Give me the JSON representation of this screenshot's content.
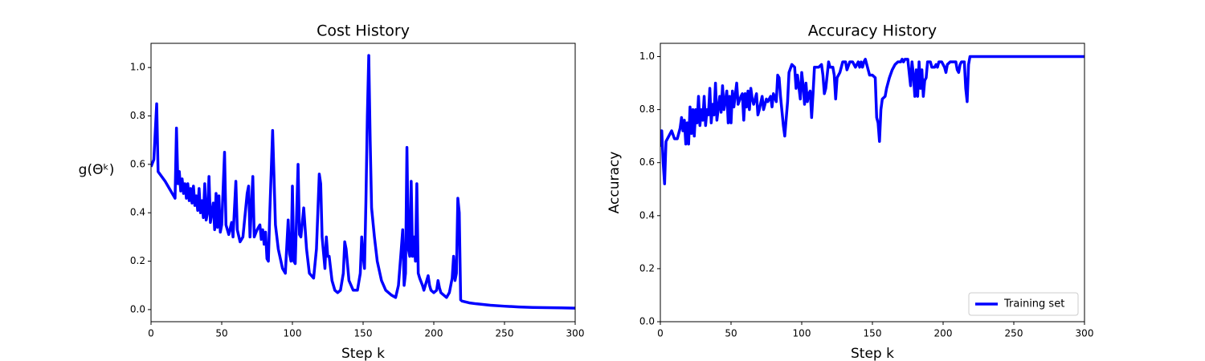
{
  "chart_data": [
    {
      "type": "line",
      "title": "Cost History",
      "xlabel": "Step k",
      "ylabel": "g(Θᵏ)",
      "color": "#0000ff",
      "xlim": [
        0,
        300
      ],
      "ylim": [
        -0.05,
        1.1
      ],
      "xticks": [
        0,
        50,
        100,
        150,
        200,
        250,
        300
      ],
      "yticks": [
        {
          "value": 0,
          "label": "0.0"
        },
        0.2,
        0.4,
        0.6,
        0.8,
        {
          "value": 1,
          "label": "1.0"
        }
      ],
      "x": [
        0,
        2,
        4,
        5,
        10,
        15,
        17,
        18,
        19,
        20,
        21,
        22,
        23,
        24,
        25,
        26,
        27,
        28,
        29,
        30,
        31,
        32,
        33,
        34,
        35,
        36,
        37,
        38,
        39,
        40,
        41,
        42,
        44,
        45,
        46,
        47,
        48,
        49,
        50,
        52,
        53,
        55,
        57,
        58,
        60,
        61,
        63,
        65,
        68,
        69,
        70,
        72,
        73,
        75,
        77,
        78,
        79,
        80,
        81,
        82,
        83,
        84,
        86,
        88,
        90,
        93,
        95,
        97,
        98,
        99,
        100,
        101,
        102,
        104,
        105,
        106,
        108,
        110,
        112,
        115,
        117,
        119,
        120,
        121,
        123,
        124,
        125,
        126,
        128,
        130,
        132,
        134,
        136,
        137,
        138,
        140,
        143,
        146,
        148,
        149,
        150,
        151,
        152,
        153,
        154,
        155,
        156,
        158,
        160,
        163,
        166,
        170,
        173,
        175,
        177,
        178,
        179,
        180,
        181,
        182,
        183,
        184,
        185,
        186,
        187,
        188,
        189,
        190,
        192,
        193,
        195,
        196,
        197,
        198,
        200,
        202,
        203,
        204,
        205,
        207,
        209,
        211,
        213,
        214,
        215,
        216,
        217,
        218,
        219,
        220,
        225,
        230,
        240,
        250,
        260,
        270,
        280,
        290,
        300
      ],
      "values": [
        0.59,
        0.62,
        0.85,
        0.57,
        0.53,
        0.48,
        0.46,
        0.75,
        0.52,
        0.57,
        0.49,
        0.54,
        0.48,
        0.52,
        0.46,
        0.52,
        0.45,
        0.5,
        0.44,
        0.51,
        0.43,
        0.47,
        0.41,
        0.5,
        0.4,
        0.45,
        0.38,
        0.52,
        0.37,
        0.4,
        0.55,
        0.36,
        0.44,
        0.33,
        0.48,
        0.34,
        0.47,
        0.32,
        0.35,
        0.65,
        0.35,
        0.31,
        0.36,
        0.3,
        0.53,
        0.33,
        0.28,
        0.3,
        0.48,
        0.51,
        0.3,
        0.55,
        0.3,
        0.33,
        0.35,
        0.29,
        0.33,
        0.27,
        0.32,
        0.21,
        0.2,
        0.4,
        0.74,
        0.35,
        0.25,
        0.17,
        0.15,
        0.37,
        0.23,
        0.2,
        0.51,
        0.2,
        0.19,
        0.6,
        0.31,
        0.3,
        0.42,
        0.25,
        0.15,
        0.13,
        0.25,
        0.56,
        0.52,
        0.3,
        0.17,
        0.3,
        0.22,
        0.22,
        0.12,
        0.08,
        0.07,
        0.08,
        0.15,
        0.28,
        0.25,
        0.12,
        0.08,
        0.08,
        0.15,
        0.3,
        0.22,
        0.17,
        0.45,
        0.8,
        1.05,
        0.7,
        0.42,
        0.3,
        0.2,
        0.12,
        0.08,
        0.06,
        0.05,
        0.1,
        0.25,
        0.33,
        0.1,
        0.15,
        0.67,
        0.25,
        0.22,
        0.53,
        0.22,
        0.3,
        0.2,
        0.52,
        0.15,
        0.13,
        0.1,
        0.08,
        0.12,
        0.14,
        0.1,
        0.08,
        0.07,
        0.08,
        0.12,
        0.09,
        0.07,
        0.06,
        0.05,
        0.07,
        0.13,
        0.22,
        0.12,
        0.15,
        0.46,
        0.4,
        0.04,
        0.035,
        0.028,
        0.024,
        0.018,
        0.014,
        0.011,
        0.009,
        0.008,
        0.007,
        0.006
      ]
    },
    {
      "type": "line",
      "title": "Accuracy History",
      "xlabel": "Step k",
      "ylabel": "Accuracy",
      "legend": "lower right",
      "xlim": [
        0,
        300
      ],
      "ylim": [
        0,
        1.05
      ],
      "xticks": [
        0,
        50,
        100,
        150,
        200,
        250,
        300
      ],
      "yticks": [
        {
          "value": 0,
          "label": "0.0"
        },
        0.2,
        0.4,
        0.6,
        0.8,
        {
          "value": 1,
          "label": "1.0"
        }
      ],
      "x": [
        0,
        1,
        2,
        3,
        4,
        6,
        8,
        10,
        12,
        14,
        15,
        16,
        17,
        18,
        19,
        20,
        21,
        22,
        23,
        24,
        25,
        26,
        27,
        28,
        29,
        30,
        31,
        32,
        33,
        34,
        35,
        36,
        37,
        38,
        39,
        40,
        42,
        43,
        44,
        45,
        47,
        48,
        49,
        50,
        51,
        52,
        54,
        55,
        57,
        58,
        59,
        60,
        61,
        62,
        63,
        64,
        65,
        66,
        67,
        68,
        69,
        70,
        72,
        73,
        75,
        76,
        78,
        79,
        80,
        82,
        83,
        84,
        85,
        87,
        88,
        90,
        91,
        93,
        95,
        96,
        97,
        99,
        100,
        101,
        102,
        103,
        104,
        105,
        106,
        107,
        108,
        109,
        112,
        114,
        115,
        116,
        117,
        119,
        120,
        122,
        123,
        124,
        125,
        127,
        129,
        131,
        132,
        134,
        136,
        138,
        140,
        141,
        142,
        143,
        144,
        145,
        146,
        147,
        148,
        150,
        152,
        153,
        154,
        155,
        156,
        157,
        159,
        160,
        162,
        164,
        166,
        168,
        170,
        171,
        172,
        173,
        175,
        177,
        178,
        179,
        180,
        181,
        182,
        183,
        184,
        185,
        186,
        187,
        188,
        189,
        191,
        192,
        194,
        195,
        196,
        197,
        199,
        200,
        201,
        202,
        203,
        205,
        209,
        210,
        211,
        212,
        213,
        215,
        216,
        217,
        218,
        219,
        300
      ],
      "series": [
        {
          "name": "Training set",
          "color": "#0000ff",
          "values": [
            0.66,
            0.72,
            0.6,
            0.52,
            0.68,
            0.7,
            0.72,
            0.69,
            0.69,
            0.73,
            0.77,
            0.72,
            0.76,
            0.67,
            0.75,
            0.67,
            0.81,
            0.71,
            0.8,
            0.7,
            0.8,
            0.75,
            0.85,
            0.74,
            0.8,
            0.76,
            0.85,
            0.74,
            0.8,
            0.78,
            0.88,
            0.75,
            0.82,
            0.78,
            0.9,
            0.76,
            0.85,
            0.79,
            0.89,
            0.8,
            0.87,
            0.75,
            0.85,
            0.75,
            0.87,
            0.81,
            0.9,
            0.82,
            0.85,
            0.86,
            0.76,
            0.86,
            0.81,
            0.87,
            0.8,
            0.88,
            0.84,
            0.82,
            0.84,
            0.86,
            0.78,
            0.8,
            0.85,
            0.8,
            0.84,
            0.83,
            0.85,
            0.81,
            0.86,
            0.83,
            0.93,
            0.92,
            0.85,
            0.74,
            0.7,
            0.83,
            0.94,
            0.97,
            0.96,
            0.88,
            0.93,
            0.84,
            0.94,
            0.89,
            0.82,
            0.9,
            0.83,
            0.86,
            0.87,
            0.77,
            0.86,
            0.96,
            0.96,
            0.97,
            0.93,
            0.86,
            0.88,
            0.98,
            0.96,
            0.96,
            0.93,
            0.84,
            0.92,
            0.94,
            0.98,
            0.98,
            0.95,
            0.98,
            0.98,
            0.96,
            0.98,
            0.96,
            0.98,
            0.96,
            0.98,
            0.99,
            0.97,
            0.95,
            0.93,
            0.93,
            0.92,
            0.77,
            0.75,
            0.68,
            0.8,
            0.84,
            0.85,
            0.88,
            0.92,
            0.95,
            0.97,
            0.98,
            0.98,
            0.99,
            0.98,
            0.99,
            0.99,
            0.89,
            0.98,
            0.93,
            0.85,
            0.95,
            0.85,
            0.98,
            0.88,
            0.95,
            0.85,
            0.91,
            0.92,
            0.98,
            0.98,
            0.96,
            0.96,
            0.97,
            0.96,
            0.98,
            0.98,
            0.97,
            0.96,
            0.94,
            0.97,
            0.98,
            0.98,
            0.95,
            0.94,
            0.97,
            0.98,
            0.98,
            0.88,
            0.83,
            0.97,
            1,
            1
          ]
        }
      ]
    }
  ]
}
